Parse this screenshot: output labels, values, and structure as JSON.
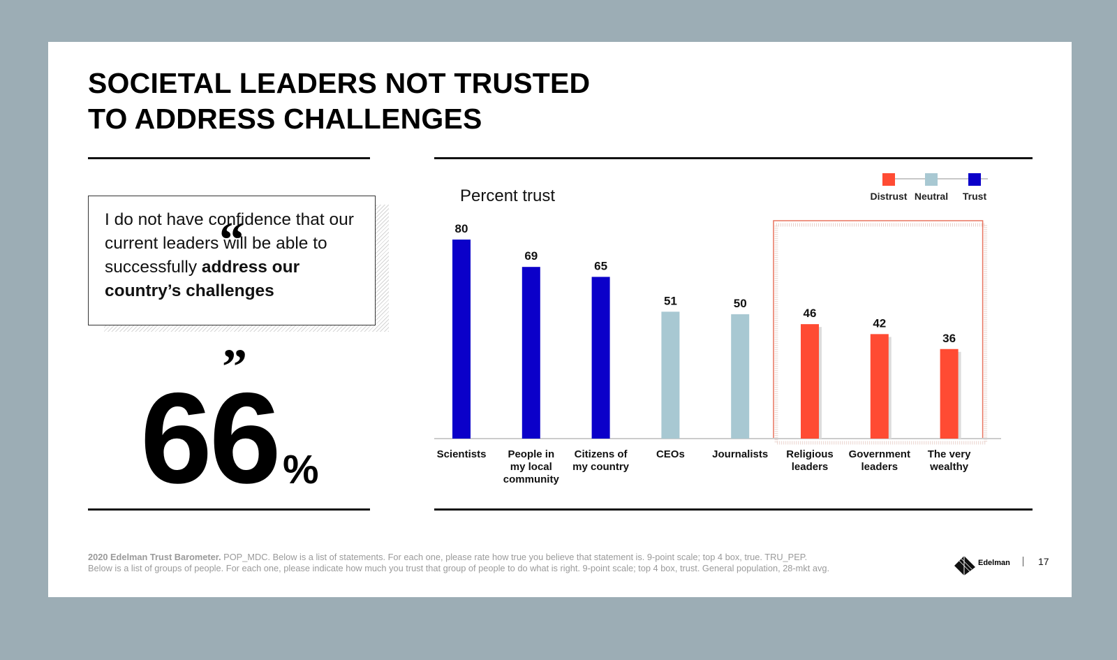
{
  "title": {
    "line1": "SOCIETAL LEADERS NOT TRUSTED",
    "line2": "TO ADDRESS CHALLENGES"
  },
  "quote": {
    "open_mark": "“",
    "close_mark": "”",
    "text_plain": "I do not have confidence that our current leaders will be able to successfully ",
    "text_bold": "address our country’s challenges"
  },
  "stat": {
    "value": "66",
    "unit": "%"
  },
  "legend": {
    "items": [
      {
        "label": "Distrust",
        "color": "#ff4b33"
      },
      {
        "label": "Neutral",
        "color": "#a8c8d2"
      },
      {
        "label": "Trust",
        "color": "#0b00c9"
      }
    ]
  },
  "chart_data": {
    "type": "bar",
    "title": "Percent trust",
    "categories": [
      [
        "Scientists"
      ],
      [
        "People in",
        "my local",
        "community"
      ],
      [
        "Citizens of",
        "my country"
      ],
      [
        "CEOs"
      ],
      [
        "Journalists"
      ],
      [
        "Religious",
        "leaders"
      ],
      [
        "Government",
        "leaders"
      ],
      [
        "The very",
        "wealthy"
      ]
    ],
    "values": [
      80,
      69,
      65,
      51,
      50,
      46,
      42,
      36
    ],
    "status": [
      "Trust",
      "Trust",
      "Trust",
      "Neutral",
      "Neutral",
      "Distrust",
      "Distrust",
      "Distrust"
    ],
    "colors": {
      "Trust": "#0b00c9",
      "Neutral": "#a8c8d2",
      "Distrust": "#ff4b33",
      "highlight_border": "#e8735f",
      "axis": "#cccccc",
      "shadow": "#dcdcdc"
    },
    "ylim": [
      0,
      80
    ],
    "highlight_categories": [
      5,
      6,
      7
    ],
    "grid": false,
    "legend_position": "top-right"
  },
  "footnote": {
    "bold": "2020 Edelman Trust Barometer.",
    "line1": " POP_MDC. Below is a list of statements. For each one, please rate how true you believe that statement is. 9-point scale; top 4 box, true. TRU_PEP.",
    "line2": "Below is a list of groups of people. For each one, please indicate how much you trust that group of people to do what is right. 9-point scale; top 4 box, trust. General population, 28-mkt avg."
  },
  "brand": {
    "name": "Edelman",
    "logo_icon": "edelman-logo-icon"
  },
  "page_number": "17"
}
